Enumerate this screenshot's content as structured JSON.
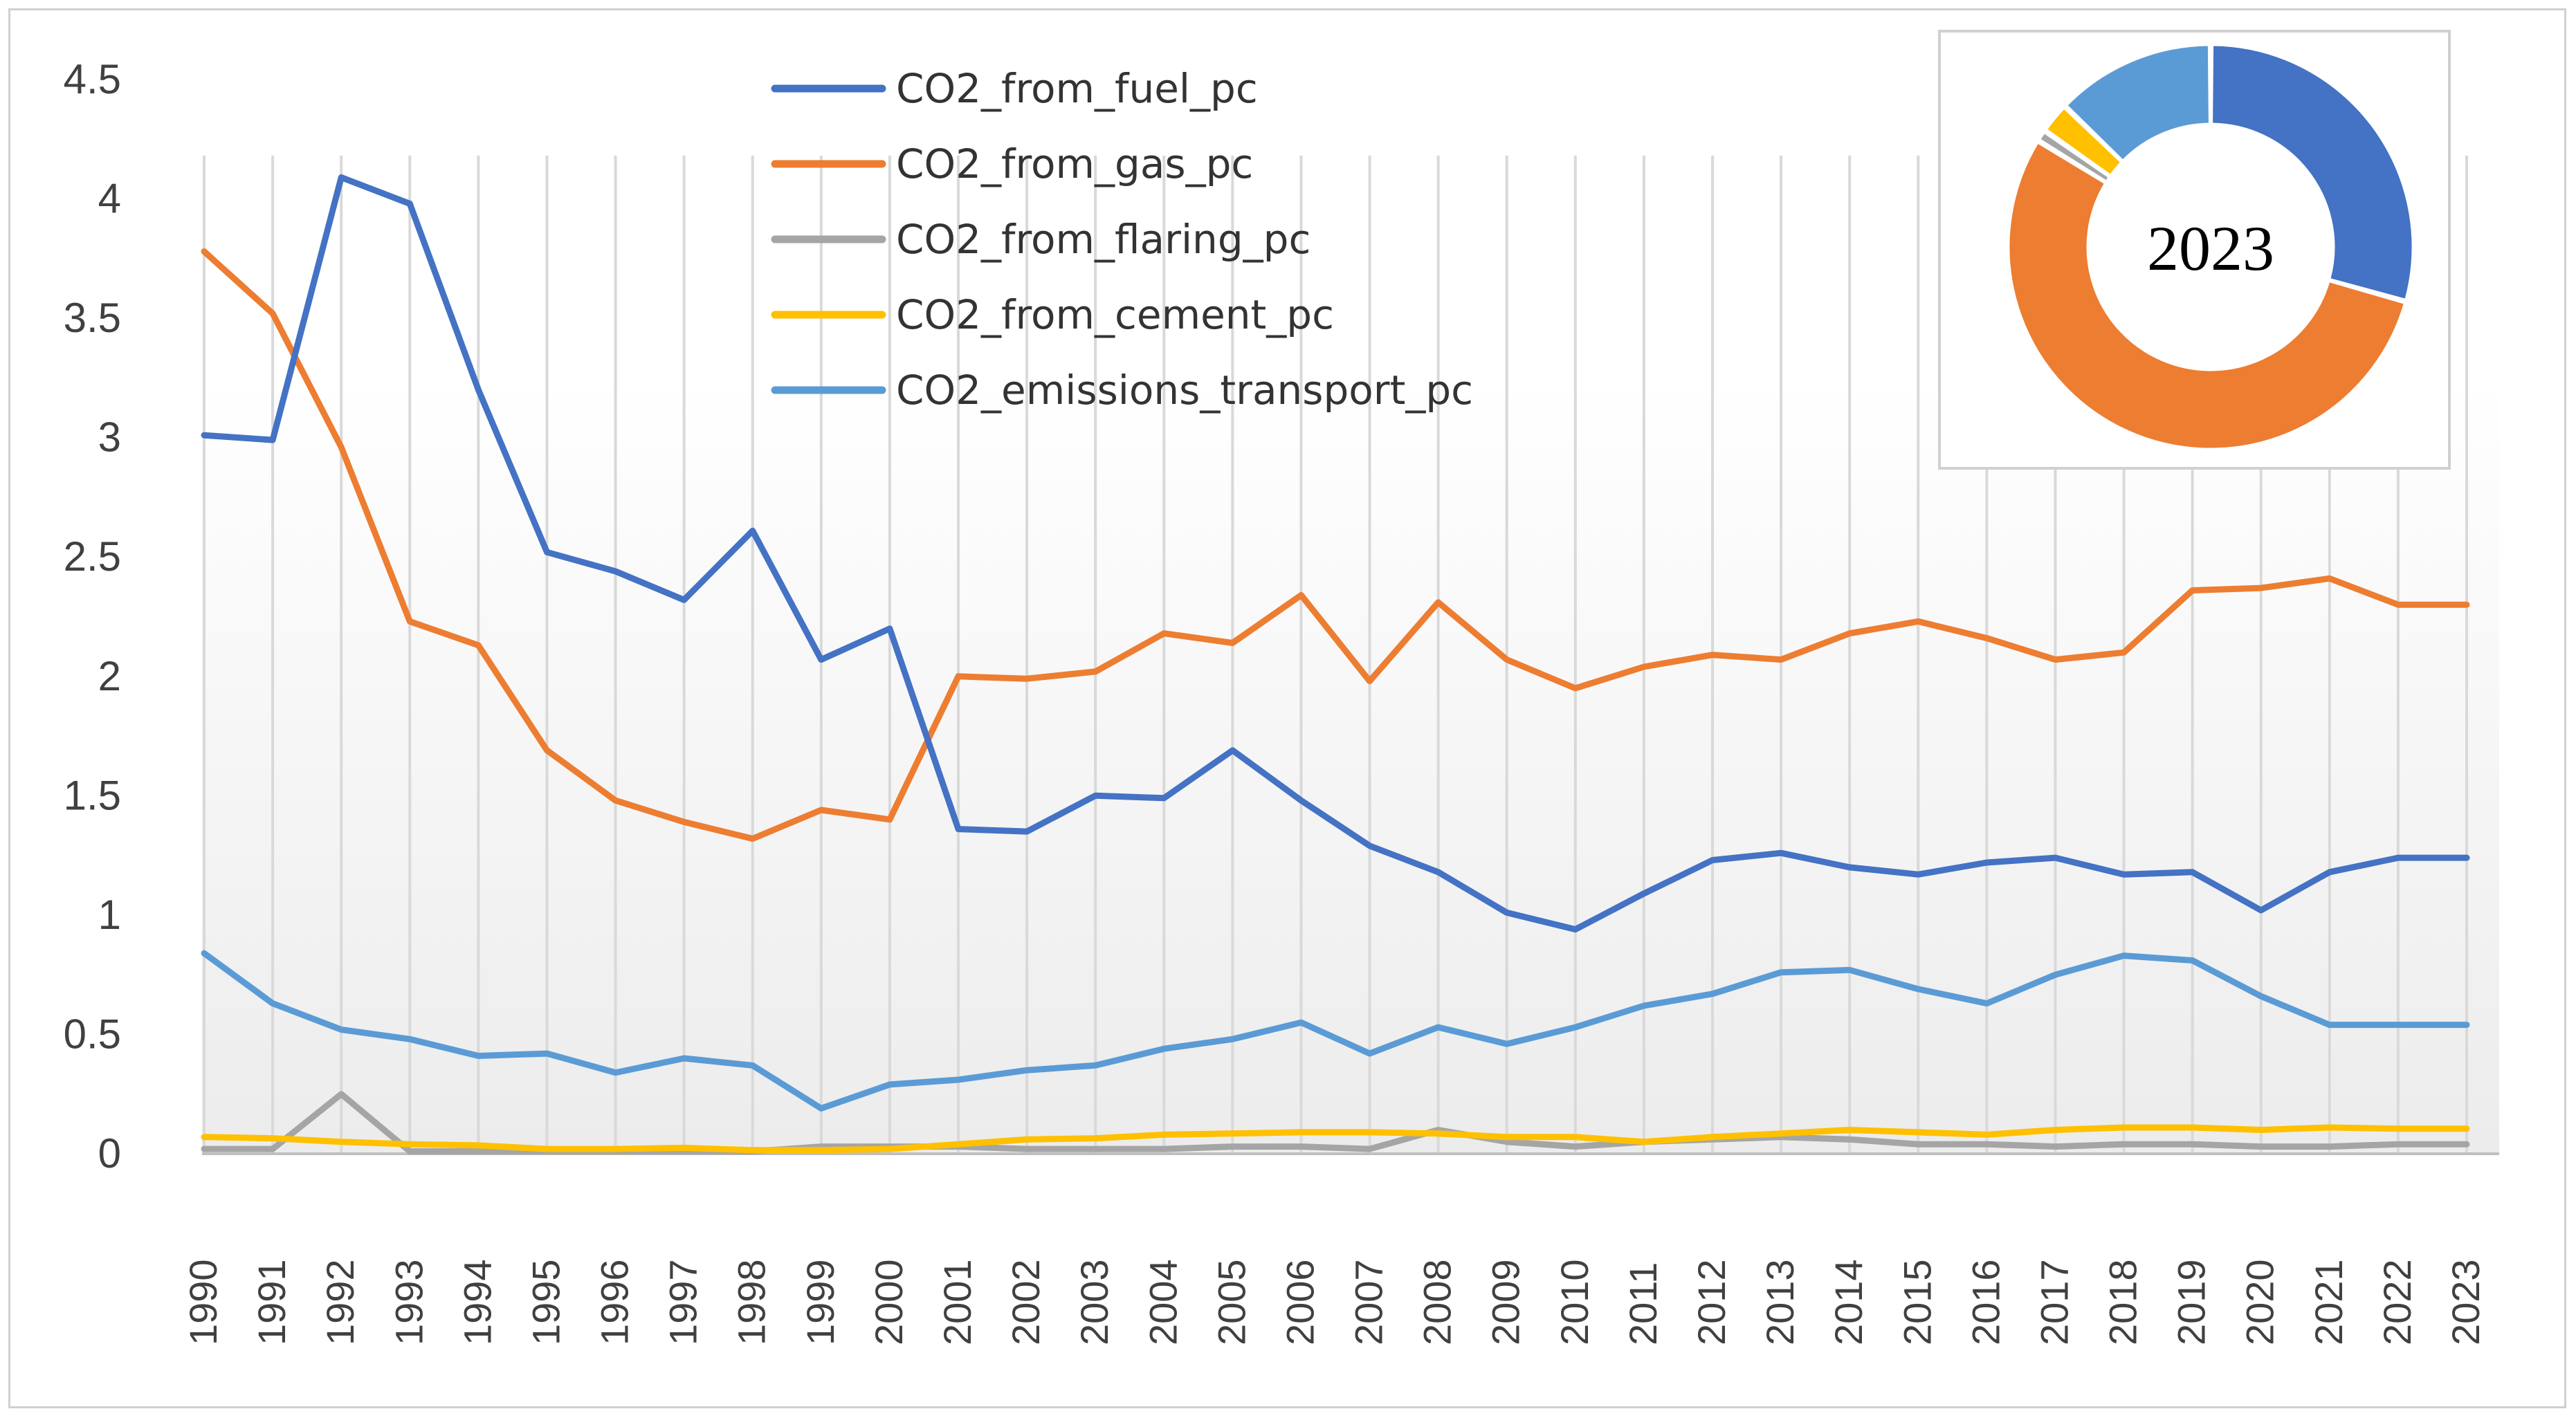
{
  "chart_data": [
    {
      "type": "line",
      "title": "",
      "xlabel": "",
      "ylabel": "",
      "ylim": [
        0,
        4.5
      ],
      "yticks": [
        "0",
        "0.5",
        "1",
        "1.5",
        "2",
        "2.5",
        "3",
        "3.5",
        "4",
        "4.5"
      ],
      "grid": "vertical",
      "legend_position": "top-center",
      "categories": [
        "1990",
        "1991",
        "1992",
        "1993",
        "1994",
        "1995",
        "1996",
        "1997",
        "1998",
        "1999",
        "2000",
        "2001",
        "2002",
        "2003",
        "2004",
        "2005",
        "2006",
        "2007",
        "2008",
        "2009",
        "2010",
        "2011",
        "2012",
        "2013",
        "2014",
        "2015",
        "2016",
        "2017",
        "2018",
        "2019",
        "2020",
        "2021",
        "2022",
        "2023"
      ],
      "series": [
        {
          "name": "CO2_from_fuel_pc",
          "color": "#4472C4",
          "values": [
            3.01,
            2.99,
            4.09,
            3.98,
            3.2,
            2.52,
            2.44,
            2.32,
            2.61,
            2.07,
            2.2,
            1.36,
            1.35,
            1.5,
            1.49,
            1.69,
            1.48,
            1.29,
            1.18,
            1.01,
            0.94,
            1.09,
            1.23,
            1.26,
            1.2,
            1.17,
            1.22,
            1.24,
            1.17,
            1.18,
            1.02,
            1.18,
            1.24,
            1.24
          ]
        },
        {
          "name": "CO2_from_gas_pc",
          "color": "#ED7D31",
          "values": [
            3.78,
            3.52,
            2.96,
            2.23,
            2.13,
            1.69,
            1.48,
            1.39,
            1.32,
            1.44,
            1.4,
            2.0,
            1.99,
            2.02,
            2.18,
            2.14,
            2.34,
            1.98,
            2.31,
            2.07,
            1.95,
            2.04,
            2.09,
            2.07,
            2.18,
            2.23,
            2.16,
            2.07,
            2.1,
            2.36,
            2.37,
            2.41,
            2.3,
            2.3
          ]
        },
        {
          "name": "CO2_from_flaring_pc",
          "color": "#A5A5A5",
          "values": [
            0.02,
            0.02,
            0.25,
            0.01,
            0.01,
            0.01,
            0.01,
            0.01,
            0.01,
            0.03,
            0.03,
            0.03,
            0.02,
            0.02,
            0.02,
            0.03,
            0.03,
            0.02,
            0.1,
            0.05,
            0.03,
            0.05,
            0.06,
            0.07,
            0.06,
            0.04,
            0.04,
            0.03,
            0.04,
            0.04,
            0.03,
            0.03,
            0.04,
            0.04
          ]
        },
        {
          "name": "CO2_from_cement_pc",
          "color": "#FFC000",
          "values": [
            0.07,
            0.065,
            0.05,
            0.04,
            0.035,
            0.02,
            0.02,
            0.025,
            0.015,
            0.015,
            0.02,
            0.04,
            0.06,
            0.065,
            0.08,
            0.085,
            0.09,
            0.09,
            0.085,
            0.07,
            0.07,
            0.05,
            0.07,
            0.085,
            0.1,
            0.09,
            0.08,
            0.1,
            0.11,
            0.11,
            0.1,
            0.11,
            0.105,
            0.105
          ]
        },
        {
          "name": "CO2_emissions_transport_pc",
          "color": "#5B9BD5",
          "values": [
            0.84,
            0.63,
            0.52,
            0.48,
            0.41,
            0.42,
            0.34,
            0.4,
            0.37,
            0.19,
            0.29,
            0.31,
            0.35,
            0.37,
            0.44,
            0.48,
            0.55,
            0.42,
            0.53,
            0.46,
            0.53,
            0.62,
            0.67,
            0.76,
            0.77,
            0.69,
            0.63,
            0.75,
            0.83,
            0.81,
            0.66,
            0.54,
            0.54,
            0.54
          ]
        }
      ]
    },
    {
      "type": "pie",
      "style": "donut",
      "center_label": "2023",
      "labels": [
        "CO2_from_fuel_pc",
        "CO2_from_gas_pc",
        "CO2_from_flaring_pc",
        "CO2_from_cement_pc",
        "CO2_emissions_transport_pc"
      ],
      "values": [
        1.24,
        2.3,
        0.04,
        0.105,
        0.54
      ],
      "colors": [
        "#4472C4",
        "#ED7D31",
        "#A5A5A5",
        "#FFC000",
        "#5B9BD5"
      ]
    }
  ]
}
